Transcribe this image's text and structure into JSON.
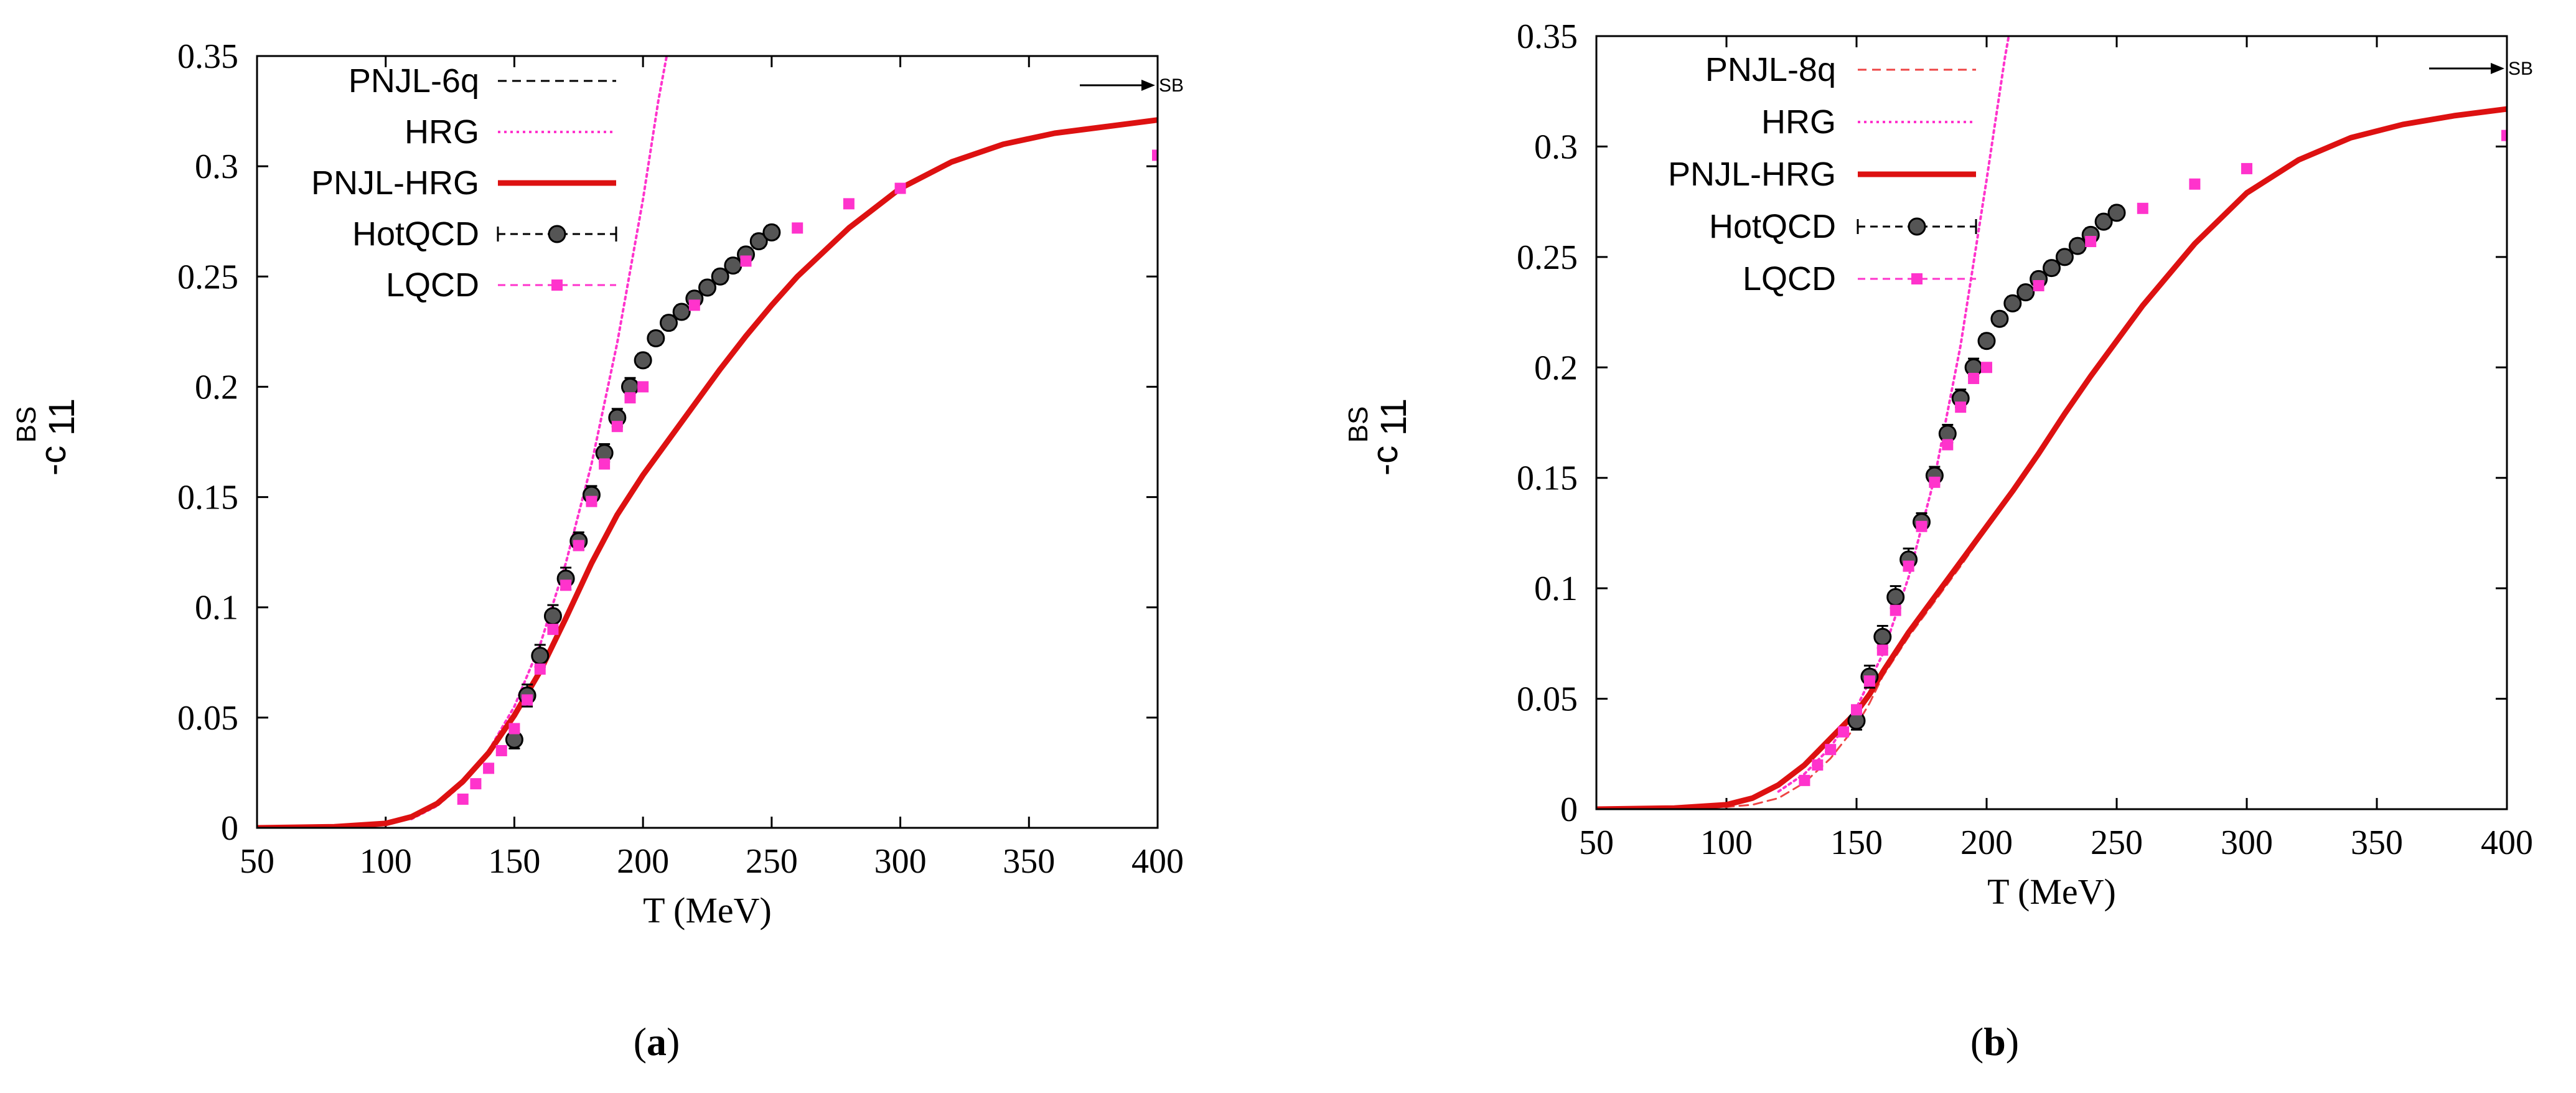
{
  "chart_data": [
    {
      "panel": "a",
      "type": "line",
      "caption": {
        "open": "(",
        "letter": "a",
        "close": ")"
      },
      "xlabel": "T (MeV)",
      "ylabel": "-c",
      "ylabel_sub": "11",
      "ylabel_sup": "BS",
      "xlim": [
        50,
        400
      ],
      "ylim": [
        0,
        0.35
      ],
      "xticks": [
        50,
        100,
        150,
        200,
        250,
        300,
        350,
        400
      ],
      "yticks": [
        "0",
        "0.05",
        "0.1",
        "0.15",
        "0.2",
        "0.25",
        "0.3",
        "0.35"
      ],
      "sb_label": "SB",
      "sb_value": 0.335,
      "series": [
        {
          "name": "PNJL-6q",
          "color": "#000000",
          "style": "dashed",
          "width": 3,
          "x": [
            50,
            80,
            100,
            110,
            120,
            130,
            140,
            150,
            160,
            170,
            180,
            190,
            200,
            210,
            220,
            230,
            240,
            250,
            260,
            280,
            300,
            320,
            340,
            360,
            380,
            400
          ],
          "y": [
            0,
            0.0005,
            0.002,
            0.005,
            0.011,
            0.021,
            0.034,
            0.051,
            0.071,
            0.095,
            0.12,
            0.142,
            0.16,
            0.176,
            0.192,
            0.208,
            0.223,
            0.237,
            0.25,
            0.272,
            0.29,
            0.302,
            0.31,
            0.315,
            0.318,
            0.321
          ]
        },
        {
          "name": "HRG",
          "color": "#ff33cc",
          "style": "dotted",
          "width": 4,
          "x": [
            110,
            120,
            130,
            140,
            150,
            160,
            170,
            180,
            190,
            200,
            206,
            210
          ],
          "y": [
            0.004,
            0.01,
            0.02,
            0.035,
            0.055,
            0.083,
            0.12,
            0.165,
            0.22,
            0.285,
            0.33,
            0.355
          ]
        },
        {
          "name": "PNJL-HRG",
          "color": "#dd1111",
          "style": "solid",
          "width": 9,
          "x": [
            50,
            80,
            100,
            110,
            120,
            130,
            140,
            150,
            160,
            170,
            180,
            190,
            200,
            210,
            220,
            230,
            240,
            250,
            260,
            280,
            300,
            320,
            340,
            360,
            380,
            400
          ],
          "y": [
            0,
            0.0005,
            0.002,
            0.005,
            0.011,
            0.021,
            0.034,
            0.051,
            0.071,
            0.095,
            0.12,
            0.142,
            0.16,
            0.176,
            0.192,
            0.208,
            0.223,
            0.237,
            0.25,
            0.272,
            0.29,
            0.302,
            0.31,
            0.315,
            0.318,
            0.321
          ]
        },
        {
          "name": "HotQCD",
          "color": "#000000",
          "marker": "circle",
          "style": "dashed",
          "width": 2,
          "errorbars": true,
          "x": [
            150,
            155,
            160,
            165,
            170,
            175,
            180,
            185,
            190,
            195,
            200,
            205,
            210,
            215,
            220,
            225,
            230,
            235,
            240,
            245,
            250
          ],
          "y": [
            0.04,
            0.06,
            0.078,
            0.096,
            0.113,
            0.13,
            0.151,
            0.17,
            0.186,
            0.2,
            0.212,
            0.222,
            0.229,
            0.234,
            0.24,
            0.245,
            0.25,
            0.255,
            0.26,
            0.266,
            0.27
          ],
          "err": [
            0.004,
            0.005,
            0.005,
            0.005,
            0.005,
            0.004,
            0.004,
            0.004,
            0.004,
            0.004,
            0.003,
            0.003,
            0.003,
            0.003,
            0.003,
            0.003,
            0.003,
            0.003,
            0.003,
            0.003,
            0.003
          ]
        },
        {
          "name": "LQCD",
          "color": "#ff33cc",
          "marker": "square",
          "style": "dashed",
          "width": 2,
          "x": [
            130,
            135,
            140,
            145,
            150,
            155,
            160,
            165,
            170,
            175,
            180,
            185,
            190,
            195,
            200,
            220,
            240,
            260,
            280,
            300,
            400
          ],
          "y": [
            0.013,
            0.02,
            0.027,
            0.035,
            0.045,
            0.058,
            0.072,
            0.09,
            0.11,
            0.128,
            0.148,
            0.165,
            0.182,
            0.195,
            0.2,
            0.237,
            0.257,
            0.272,
            0.283,
            0.29,
            0.305
          ]
        }
      ]
    },
    {
      "panel": "b",
      "type": "line",
      "caption": {
        "open": "(",
        "letter": "b",
        "close": ")"
      },
      "xlabel": "T (MeV)",
      "ylabel": "-c",
      "ylabel_sub": "11",
      "ylabel_sup": "BS",
      "xlim": [
        50,
        400
      ],
      "ylim": [
        0,
        0.35
      ],
      "xticks": [
        50,
        100,
        150,
        200,
        250,
        300,
        350,
        400
      ],
      "yticks": [
        "0",
        "0.05",
        "0.1",
        "0.15",
        "0.2",
        "0.25",
        "0.3",
        "0.35"
      ],
      "sb_label": "SB",
      "sb_value": 0.335,
      "series": [
        {
          "name": "PNJL-8q",
          "color": "#ee4444",
          "style": "dashed",
          "width": 3,
          "x": [
            50,
            80,
            100,
            110,
            120,
            130,
            140,
            150,
            155,
            160,
            170,
            180,
            190,
            200,
            210,
            220,
            230,
            240,
            250,
            260,
            280,
            300,
            320,
            340,
            360,
            380,
            400
          ],
          "y": [
            0,
            0.0003,
            0.001,
            0.002,
            0.005,
            0.012,
            0.023,
            0.038,
            0.048,
            0.06,
            0.078,
            0.094,
            0.11,
            0.127,
            0.143,
            0.16,
            0.178,
            0.195,
            0.212,
            0.228,
            0.256,
            0.279,
            0.294,
            0.304,
            0.31,
            0.314,
            0.317
          ]
        },
        {
          "name": "HRG",
          "color": "#ff33cc",
          "style": "dotted",
          "width": 4,
          "x": [
            120,
            130,
            140,
            150,
            160,
            170,
            180,
            190,
            200,
            207,
            210
          ],
          "y": [
            0.008,
            0.016,
            0.028,
            0.046,
            0.07,
            0.105,
            0.15,
            0.21,
            0.285,
            0.34,
            0.36
          ]
        },
        {
          "name": "PNJL-HRG",
          "color": "#dd1111",
          "style": "solid",
          "width": 9,
          "x": [
            50,
            80,
            100,
            110,
            120,
            130,
            140,
            150,
            155,
            160,
            170,
            180,
            190,
            200,
            210,
            220,
            230,
            240,
            250,
            260,
            280,
            300,
            320,
            340,
            360,
            380,
            400
          ],
          "y": [
            0,
            0.0005,
            0.002,
            0.005,
            0.011,
            0.02,
            0.032,
            0.044,
            0.052,
            0.062,
            0.08,
            0.096,
            0.112,
            0.128,
            0.144,
            0.161,
            0.179,
            0.196,
            0.212,
            0.228,
            0.256,
            0.279,
            0.294,
            0.304,
            0.31,
            0.314,
            0.317
          ]
        },
        {
          "name": "HotQCD",
          "color": "#000000",
          "marker": "circle",
          "style": "dashed",
          "width": 2,
          "errorbars": true,
          "x": [
            150,
            155,
            160,
            165,
            170,
            175,
            180,
            185,
            190,
            195,
            200,
            205,
            210,
            215,
            220,
            225,
            230,
            235,
            240,
            245,
            250
          ],
          "y": [
            0.04,
            0.06,
            0.078,
            0.096,
            0.113,
            0.13,
            0.151,
            0.17,
            0.186,
            0.2,
            0.212,
            0.222,
            0.229,
            0.234,
            0.24,
            0.245,
            0.25,
            0.255,
            0.26,
            0.266,
            0.27
          ],
          "err": [
            0.004,
            0.005,
            0.005,
            0.005,
            0.005,
            0.004,
            0.004,
            0.004,
            0.004,
            0.004,
            0.003,
            0.003,
            0.003,
            0.003,
            0.003,
            0.003,
            0.003,
            0.003,
            0.003,
            0.003,
            0.003
          ]
        },
        {
          "name": "LQCD",
          "color": "#ff33cc",
          "marker": "square",
          "style": "dashed",
          "width": 2,
          "x": [
            130,
            135,
            140,
            145,
            150,
            155,
            160,
            165,
            170,
            175,
            180,
            185,
            190,
            195,
            200,
            220,
            240,
            260,
            280,
            300,
            400
          ],
          "y": [
            0.013,
            0.02,
            0.027,
            0.035,
            0.045,
            0.058,
            0.072,
            0.09,
            0.11,
            0.128,
            0.148,
            0.165,
            0.182,
            0.195,
            0.2,
            0.237,
            0.257,
            0.272,
            0.283,
            0.29,
            0.305
          ]
        }
      ]
    }
  ]
}
